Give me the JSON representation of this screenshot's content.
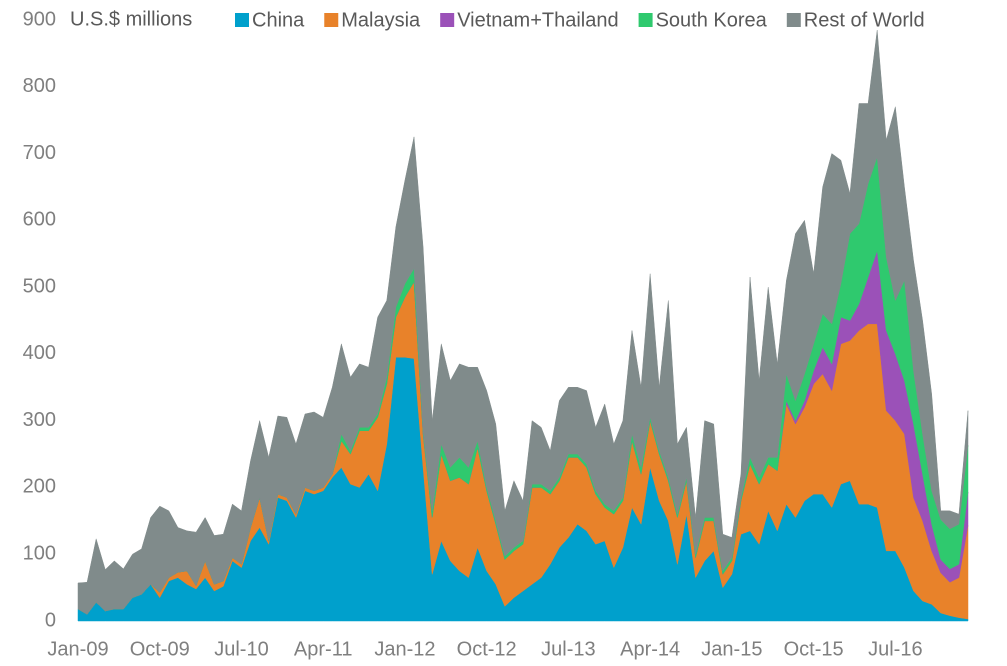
{
  "chart_data": {
    "type": "stacked_area",
    "ylabel": "U.S.$ millions",
    "categories": [
      "Jan-09",
      null,
      null,
      null,
      null,
      null,
      null,
      null,
      null,
      "Oct-09",
      null,
      null,
      null,
      null,
      null,
      null,
      null,
      null,
      "Jul-10",
      null,
      null,
      null,
      null,
      null,
      null,
      null,
      null,
      "Apr-11",
      null,
      null,
      null,
      null,
      null,
      null,
      null,
      null,
      "Jan-12",
      null,
      null,
      null,
      null,
      null,
      null,
      null,
      null,
      "Oct-12",
      null,
      null,
      null,
      null,
      null,
      null,
      null,
      null,
      "Jul-13",
      null,
      null,
      null,
      null,
      null,
      null,
      null,
      null,
      "Apr-14",
      null,
      null,
      null,
      null,
      null,
      null,
      null,
      null,
      "Jan-15",
      null,
      null,
      null,
      null,
      null,
      null,
      null,
      null,
      "Oct-15",
      null,
      null,
      null,
      null,
      null,
      null,
      null,
      null,
      "Jul-16",
      null,
      null,
      null,
      null,
      null,
      null,
      null,
      null
    ],
    "series": [
      {
        "name": "China",
        "color": "#00a0cc",
        "values": [
          18,
          10,
          28,
          15,
          18,
          18,
          35,
          40,
          55,
          35,
          60,
          65,
          55,
          48,
          65,
          45,
          52,
          90,
          80,
          120,
          140,
          115,
          185,
          180,
          155,
          195,
          190,
          195,
          215,
          230,
          205,
          200,
          220,
          195,
          265,
          395,
          395,
          393,
          230,
          70,
          120,
          90,
          75,
          65,
          110,
          75,
          55,
          22,
          35,
          45,
          55,
          65,
          85,
          110,
          125,
          145,
          135,
          115,
          120,
          80,
          110,
          170,
          145,
          230,
          180,
          150,
          85,
          160,
          65,
          90,
          105,
          50,
          70,
          130,
          135,
          115,
          165,
          135,
          175,
          155,
          180,
          190,
          190,
          170,
          205,
          210,
          175,
          175,
          170,
          105,
          105,
          80,
          45,
          30,
          25,
          12,
          8,
          5,
          3
        ]
      },
      {
        "name": "Malaysia",
        "color": "#e8822a",
        "values": [
          0,
          0,
          0,
          0,
          0,
          0,
          0,
          0,
          0,
          8,
          5,
          8,
          20,
          5,
          25,
          10,
          8,
          5,
          5,
          20,
          45,
          5,
          5,
          5,
          5,
          5,
          5,
          5,
          5,
          40,
          45,
          85,
          65,
          110,
          90,
          60,
          90,
          115,
          50,
          85,
          130,
          120,
          140,
          140,
          150,
          120,
          90,
          70,
          70,
          70,
          145,
          135,
          105,
          100,
          120,
          100,
          95,
          75,
          50,
          80,
          70,
          100,
          75,
          70,
          70,
          60,
          70,
          50,
          30,
          60,
          45,
          20,
          20,
          50,
          100,
          90,
          70,
          90,
          150,
          140,
          140,
          165,
          180,
          175,
          210,
          210,
          260,
          270,
          275,
          210,
          195,
          200,
          140,
          120,
          80,
          60,
          50,
          60,
          140
        ]
      },
      {
        "name": "Vietnam+Thailand",
        "color": "#9b51b8",
        "values": [
          0,
          0,
          0,
          0,
          0,
          0,
          0,
          0,
          0,
          0,
          0,
          0,
          0,
          0,
          0,
          0,
          0,
          0,
          0,
          0,
          0,
          0,
          0,
          0,
          0,
          0,
          0,
          0,
          0,
          0,
          0,
          0,
          0,
          0,
          0,
          0,
          0,
          0,
          0,
          0,
          0,
          0,
          0,
          0,
          0,
          0,
          0,
          0,
          0,
          0,
          0,
          0,
          0,
          0,
          0,
          0,
          0,
          0,
          0,
          0,
          0,
          0,
          0,
          0,
          0,
          0,
          0,
          0,
          0,
          0,
          0,
          0,
          0,
          0,
          0,
          0,
          0,
          0,
          5,
          5,
          10,
          20,
          40,
          40,
          40,
          30,
          40,
          70,
          110,
          120,
          100,
          80,
          110,
          70,
          40,
          20,
          20,
          20,
          50
        ]
      },
      {
        "name": "South Korea",
        "color": "#2fc96e",
        "values": [
          0,
          0,
          0,
          0,
          0,
          0,
          0,
          0,
          0,
          0,
          0,
          0,
          0,
          0,
          0,
          0,
          0,
          0,
          0,
          0,
          0,
          0,
          0,
          0,
          0,
          0,
          0,
          0,
          0,
          10,
          5,
          5,
          5,
          5,
          10,
          15,
          20,
          20,
          5,
          10,
          15,
          20,
          30,
          25,
          10,
          5,
          5,
          5,
          5,
          5,
          5,
          5,
          5,
          5,
          5,
          5,
          5,
          5,
          5,
          5,
          5,
          10,
          10,
          5,
          5,
          5,
          5,
          5,
          5,
          5,
          5,
          5,
          5,
          5,
          10,
          10,
          10,
          20,
          40,
          30,
          40,
          40,
          50,
          60,
          50,
          130,
          120,
          140,
          140,
          110,
          80,
          150,
          80,
          60,
          50,
          60,
          60,
          60,
          70
        ]
      },
      {
        "name": "Rest of World",
        "color": "#808b8b",
        "values": [
          39,
          48,
          95,
          62,
          72,
          60,
          65,
          68,
          100,
          129,
          100,
          67,
          60,
          80,
          65,
          73,
          70,
          80,
          80,
          100,
          115,
          125,
          117,
          120,
          105,
          110,
          118,
          105,
          130,
          135,
          110,
          95,
          90,
          145,
          115,
          120,
          155,
          197,
          275,
          135,
          150,
          130,
          140,
          150,
          110,
          145,
          145,
          68,
          100,
          60,
          95,
          85,
          60,
          115,
          100,
          100,
          110,
          95,
          150,
          100,
          115,
          155,
          120,
          215,
          95,
          265,
          105,
          75,
          55,
          145,
          140,
          55,
          30,
          35,
          270,
          145,
          255,
          140,
          140,
          250,
          230,
          105,
          190,
          255,
          185,
          60,
          180,
          120,
          190,
          175,
          290,
          140,
          165,
          170,
          145,
          13,
          27,
          15,
          52
        ]
      }
    ],
    "ylim": [
      0,
      900
    ],
    "yticks": [
      0,
      100,
      200,
      300,
      400,
      500,
      600,
      700,
      800,
      900
    ],
    "grid": false,
    "legend": "top"
  }
}
